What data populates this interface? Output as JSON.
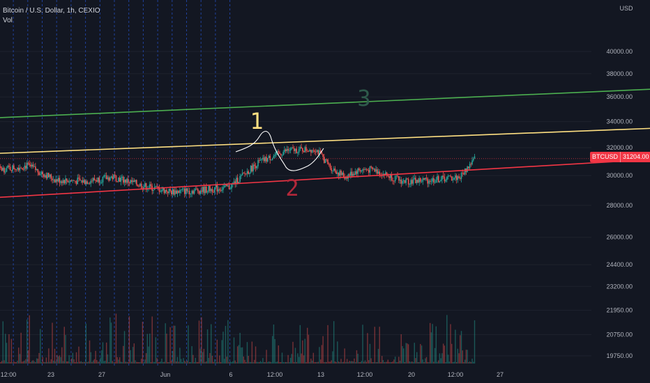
{
  "header": {
    "title": "Bitcoin / U.S. Dollar, 1h, CEXIO",
    "indicator": "Vol"
  },
  "price_tag": {
    "symbol": "BTCUSD",
    "price": "31204.00"
  },
  "colors": {
    "background": "#131722",
    "grid": "#2a2e39",
    "session_line": "#2962ff",
    "up_candle": "#26a69a",
    "down_candle": "#ef5350",
    "line_upper": "#4caf50",
    "line_middle": "#ffe082",
    "line_lower": "#f23645",
    "axis_text": "#b2b5be",
    "sketch": "#ffffff"
  },
  "annotations": [
    {
      "id": "label-1",
      "text": "1",
      "color": "#ffe082"
    },
    {
      "id": "label-2",
      "text": "2",
      "color": "#b2283a"
    },
    {
      "id": "label-3",
      "text": "3",
      "color": "#2e5a4b"
    }
  ],
  "chart_data": {
    "type": "candlestick",
    "title": "Bitcoin / U.S. Dollar, 1h, CEXIO",
    "y_scale": "log",
    "ylim": [
      19000,
      43000
    ],
    "y_unit": "USD",
    "y_ticks": [
      "40000.00",
      "38000.00",
      "36000.00",
      "34000.00",
      "32000.00",
      "30000.00",
      "28000.00",
      "26000.00",
      "24400.00",
      "23200.00",
      "21950.00",
      "20750.00",
      "19750.00"
    ],
    "x_ticks": [
      "12:00",
      "23",
      "27",
      "Jun",
      "6",
      "12:00",
      "13",
      "12:00",
      "20",
      "12:00",
      "27"
    ],
    "last_price": 31204.0,
    "trend_lines": [
      {
        "name": "upper",
        "from": [
          "2022-05-20",
          34200
        ],
        "to": [
          "2022-06-15",
          36900
        ]
      },
      {
        "name": "middle",
        "from": [
          "2022-05-20",
          31500
        ],
        "to": [
          "2022-06-13",
          33500
        ]
      },
      {
        "name": "lower",
        "from": [
          "2022-05-20",
          28400
        ],
        "to": [
          "2022-06-14",
          31300
        ]
      }
    ],
    "price_path": [
      [
        "05-20",
        29800
      ],
      [
        "05-21",
        30400
      ],
      [
        "05-22",
        30700
      ],
      [
        "05-23",
        29700
      ],
      [
        "05-24",
        29600
      ],
      [
        "05-25",
        29900
      ],
      [
        "05-26",
        29300
      ],
      [
        "05-27",
        28900
      ],
      [
        "05-28",
        29000
      ],
      [
        "05-29",
        29200
      ],
      [
        "05-30",
        30900
      ],
      [
        "05-31",
        31800
      ],
      [
        "06-01",
        31900
      ],
      [
        "06-01 12:00",
        30600
      ],
      [
        "06-02",
        29900
      ],
      [
        "06-02 12:00",
        30400
      ],
      [
        "06-03",
        30400
      ],
      [
        "06-04",
        29600
      ],
      [
        "06-05",
        29700
      ],
      [
        "06-06",
        29900
      ],
      [
        "06-06 12:00",
        31204
      ]
    ]
  }
}
